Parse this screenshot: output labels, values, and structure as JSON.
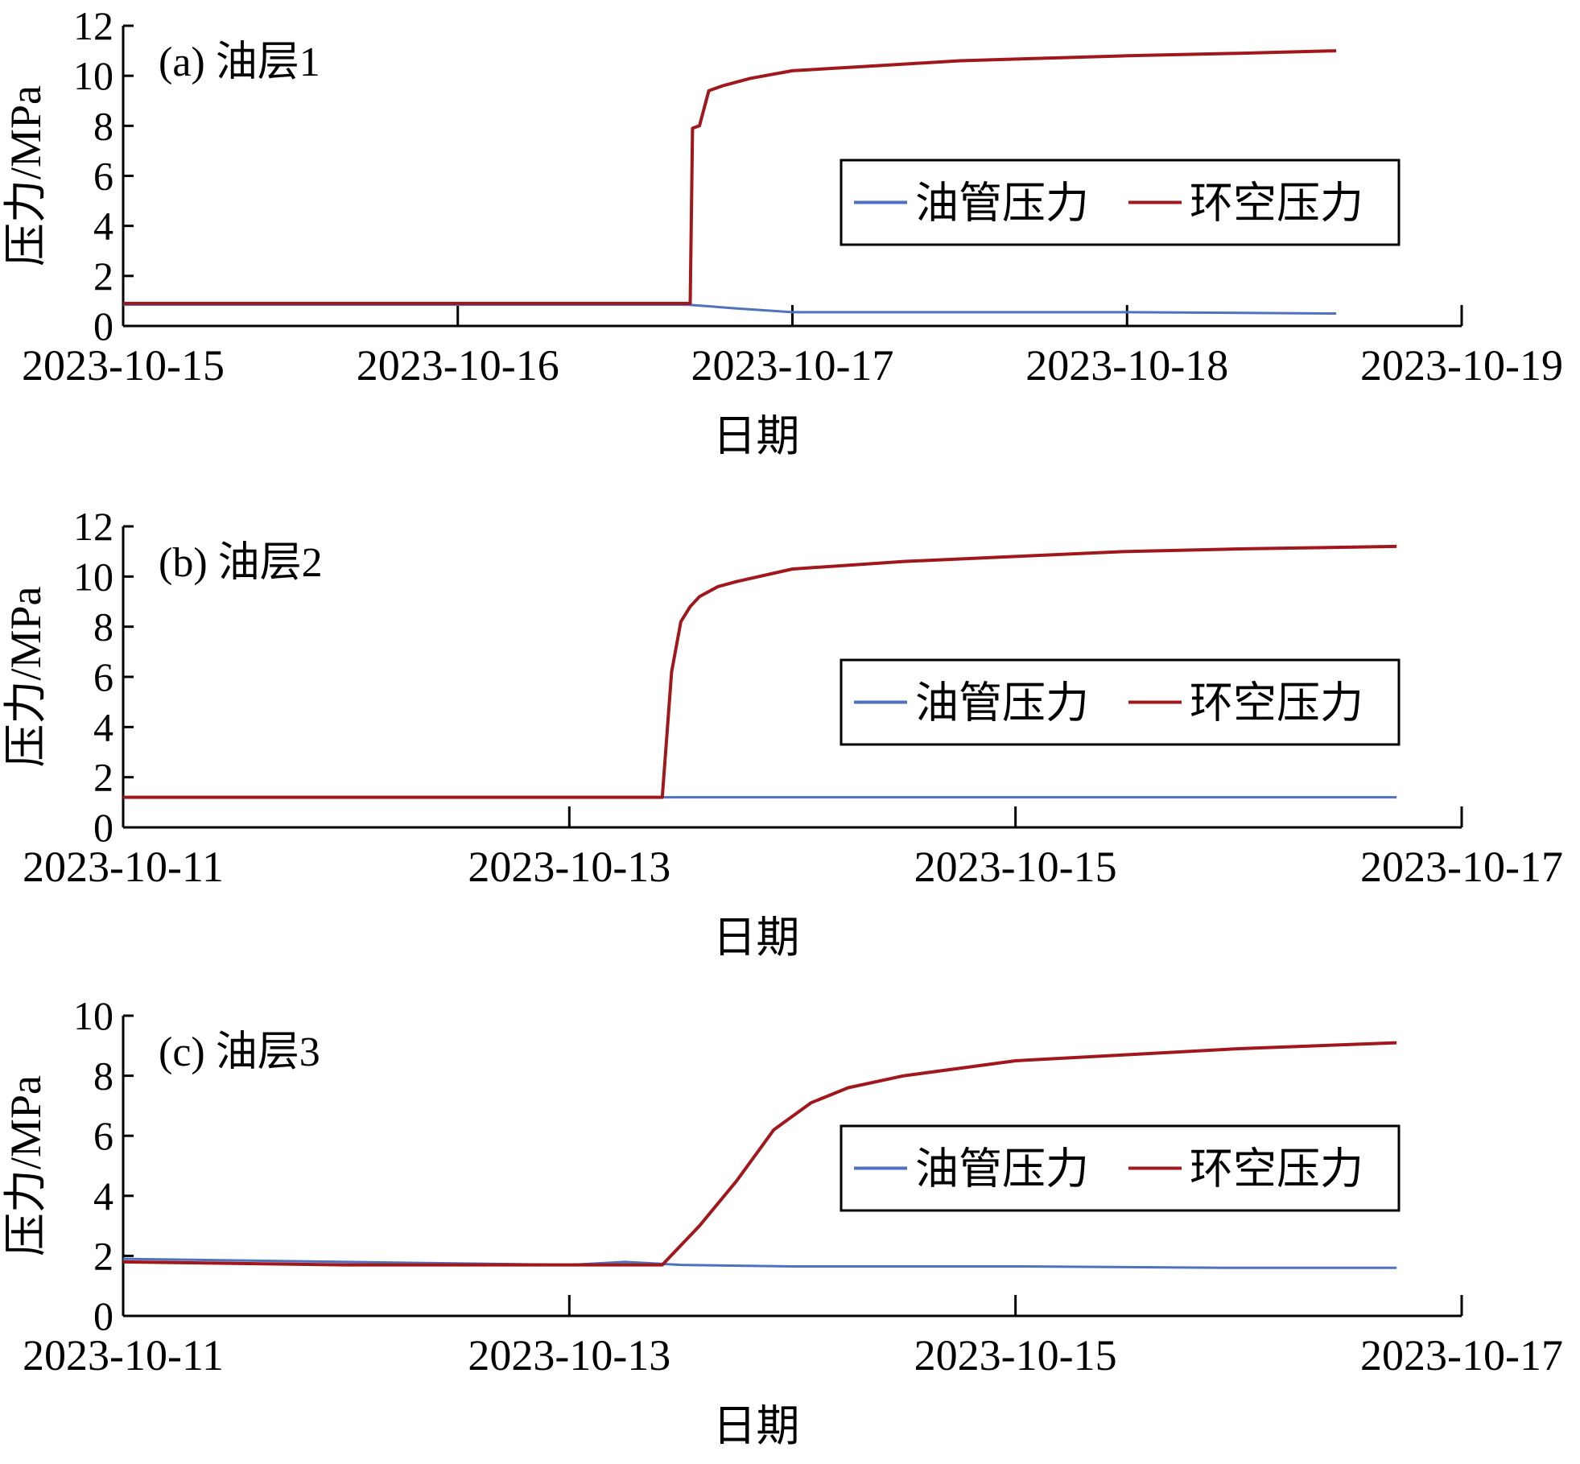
{
  "colors": {
    "tubing": "#4f71be",
    "annulus": "#a0171c",
    "axis": "#000000"
  },
  "chart_data": [
    {
      "type": "line",
      "panel_label": "(a) 油层1",
      "xlabel": "日期",
      "ylabel": "压力/MPa",
      "x_ticks": [
        "2023-10-15",
        "2023-10-16",
        "2023-10-17",
        "2023-10-18",
        "2023-10-19"
      ],
      "xlim": [
        "2023-10-15",
        "2023-10-19"
      ],
      "ylim": [
        0,
        12
      ],
      "y_ticks": [
        "0",
        "2",
        "4",
        "6",
        "8",
        "10",
        "12"
      ],
      "grid": false,
      "legend_position": "right",
      "legend": [
        "油管压力",
        "环空压力"
      ],
      "series": [
        {
          "name": "油管压力",
          "color": "#4f71be",
          "x": [
            "2023-10-15 00:00",
            "2023-10-16 06:00",
            "2023-10-16 16:30",
            "2023-10-16 20:00",
            "2023-10-17 00:00",
            "2023-10-18 00:00",
            "2023-10-18 15:00"
          ],
          "y": [
            0.85,
            0.85,
            0.85,
            0.7,
            0.55,
            0.55,
            0.5
          ]
        },
        {
          "name": "环空压力",
          "color": "#a0171c",
          "x": [
            "2023-10-15 00:00",
            "2023-10-16 12:00",
            "2023-10-16 16:40",
            "2023-10-16 16:50",
            "2023-10-16 17:20",
            "2023-10-16 18:00",
            "2023-10-16 19:00",
            "2023-10-16 21:00",
            "2023-10-17 00:00",
            "2023-10-17 06:00",
            "2023-10-17 12:00",
            "2023-10-17 18:00",
            "2023-10-18 00:00",
            "2023-10-18 08:00",
            "2023-10-18 15:00"
          ],
          "y": [
            0.9,
            0.9,
            0.9,
            7.9,
            8.0,
            9.4,
            9.6,
            9.9,
            10.2,
            10.4,
            10.6,
            10.7,
            10.8,
            10.9,
            11.0
          ]
        }
      ]
    },
    {
      "type": "line",
      "panel_label": "(b) 油层2",
      "xlabel": "日期",
      "ylabel": "压力/MPa",
      "x_ticks": [
        "2023-10-11",
        "2023-10-13",
        "2023-10-15",
        "2023-10-17"
      ],
      "xlim": [
        "2023-10-11",
        "2023-10-17"
      ],
      "ylim": [
        0,
        12
      ],
      "y_ticks": [
        "0",
        "2",
        "4",
        "6",
        "8",
        "10",
        "12"
      ],
      "grid": false,
      "legend_position": "right",
      "legend": [
        "油管压力",
        "环空压力"
      ],
      "series": [
        {
          "name": "油管压力",
          "color": "#4f71be",
          "x": [
            "2023-10-11 00:00",
            "2023-10-13 10:00",
            "2023-10-14 00:00",
            "2023-10-15 00:00",
            "2023-10-16 17:00"
          ],
          "y": [
            1.2,
            1.2,
            1.2,
            1.2,
            1.2
          ]
        },
        {
          "name": "环空压力",
          "color": "#a0171c",
          "x": [
            "2023-10-11 00:00",
            "2023-10-13 10:00",
            "2023-10-13 11:00",
            "2023-10-13 12:00",
            "2023-10-13 13:00",
            "2023-10-13 14:00",
            "2023-10-13 16:00",
            "2023-10-13 18:00",
            "2023-10-14 00:00",
            "2023-10-14 12:00",
            "2023-10-15 00:00",
            "2023-10-15 12:00",
            "2023-10-16 00:00",
            "2023-10-16 17:00"
          ],
          "y": [
            1.2,
            1.2,
            6.2,
            8.2,
            8.8,
            9.2,
            9.6,
            9.8,
            10.3,
            10.6,
            10.8,
            11.0,
            11.1,
            11.2
          ]
        }
      ]
    },
    {
      "type": "line",
      "panel_label": "(c) 油层3",
      "xlabel": "日期",
      "ylabel": "压力/MPa",
      "x_ticks": [
        "2023-10-11",
        "2023-10-13",
        "2023-10-15",
        "2023-10-17"
      ],
      "xlim": [
        "2023-10-11",
        "2023-10-17"
      ],
      "ylim": [
        0,
        10
      ],
      "y_ticks": [
        "0",
        "2",
        "4",
        "6",
        "8",
        "10"
      ],
      "grid": false,
      "legend_position": "right",
      "legend": [
        "油管压力",
        "环空压力"
      ],
      "series": [
        {
          "name": "油管压力",
          "color": "#4f71be",
          "x": [
            "2023-10-11 00:00",
            "2023-10-12 00:00",
            "2023-10-13 00:00",
            "2023-10-13 06:00",
            "2023-10-13 12:00",
            "2023-10-14 00:00",
            "2023-10-15 00:00",
            "2023-10-16 00:00",
            "2023-10-16 17:00"
          ],
          "y": [
            1.9,
            1.8,
            1.7,
            1.8,
            1.7,
            1.65,
            1.65,
            1.6,
            1.6
          ]
        },
        {
          "name": "环空压力",
          "color": "#a0171c",
          "x": [
            "2023-10-11 00:00",
            "2023-10-12 00:00",
            "2023-10-13 00:00",
            "2023-10-13 10:00",
            "2023-10-13 14:00",
            "2023-10-13 18:00",
            "2023-10-13 22:00",
            "2023-10-14 02:00",
            "2023-10-14 06:00",
            "2023-10-14 12:00",
            "2023-10-15 00:00",
            "2023-10-15 12:00",
            "2023-10-16 00:00",
            "2023-10-16 17:00"
          ],
          "y": [
            1.8,
            1.7,
            1.7,
            1.7,
            3.0,
            4.5,
            6.2,
            7.1,
            7.6,
            8.0,
            8.5,
            8.7,
            8.9,
            9.1
          ]
        }
      ]
    }
  ]
}
